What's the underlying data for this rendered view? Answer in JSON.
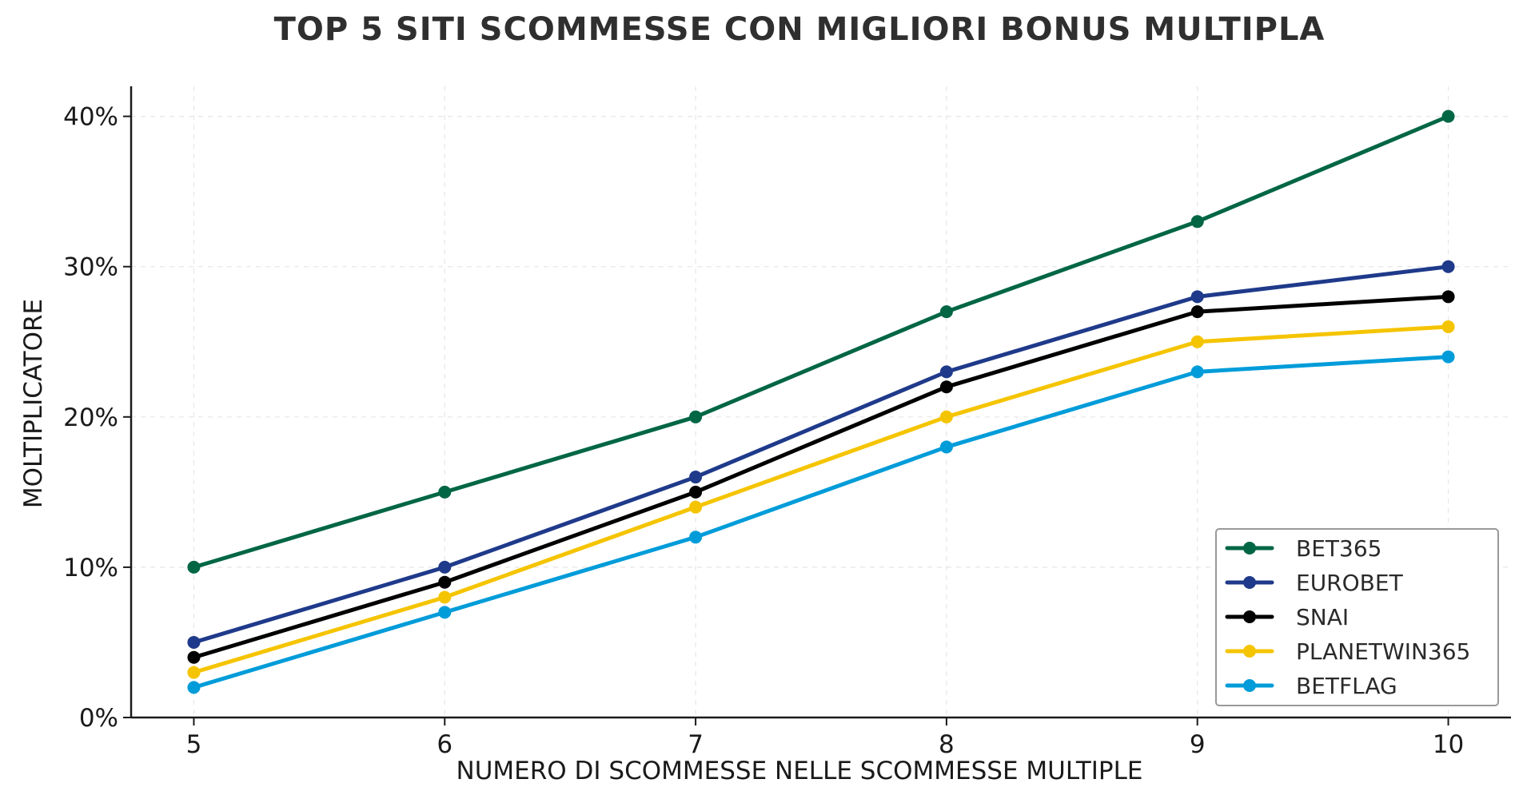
{
  "chart_data": {
    "type": "line",
    "title": "TOP 5 SITI SCOMMESSE CON MIGLIORI BONUS MULTIPLA",
    "xlabel": "NUMERO DI SCOMMESSE NELLE SCOMMESSE MULTIPLE",
    "ylabel": "MOLTIPLICATORE",
    "x": [
      5,
      6,
      7,
      8,
      9,
      10
    ],
    "x_tick_labels": [
      "5",
      "6",
      "7",
      "8",
      "9",
      "10"
    ],
    "xlim": [
      4.75,
      10.25
    ],
    "ylim": [
      0,
      42
    ],
    "y_ticks": [
      0,
      10,
      20,
      30,
      40
    ],
    "y_tick_labels": [
      "0%",
      "10%",
      "20%",
      "30%",
      "40%"
    ],
    "y_unit": "%",
    "grid": true,
    "legend_position": "bottom-right",
    "series": [
      {
        "name": "BET365",
        "color": "#006644",
        "values": [
          10,
          15,
          20,
          27,
          33,
          40
        ]
      },
      {
        "name": "EUROBET",
        "color": "#1f3a8a",
        "values": [
          5,
          10,
          16,
          23,
          28,
          30
        ]
      },
      {
        "name": "SNAI",
        "color": "#000000",
        "values": [
          4,
          9,
          15,
          22,
          27,
          28
        ]
      },
      {
        "name": "PLANETWIN365",
        "color": "#f5c400",
        "values": [
          3,
          8,
          14,
          20,
          25,
          26
        ]
      },
      {
        "name": "BETFLAG",
        "color": "#009cd9",
        "values": [
          2,
          7,
          12,
          18,
          23,
          24
        ]
      }
    ]
  }
}
